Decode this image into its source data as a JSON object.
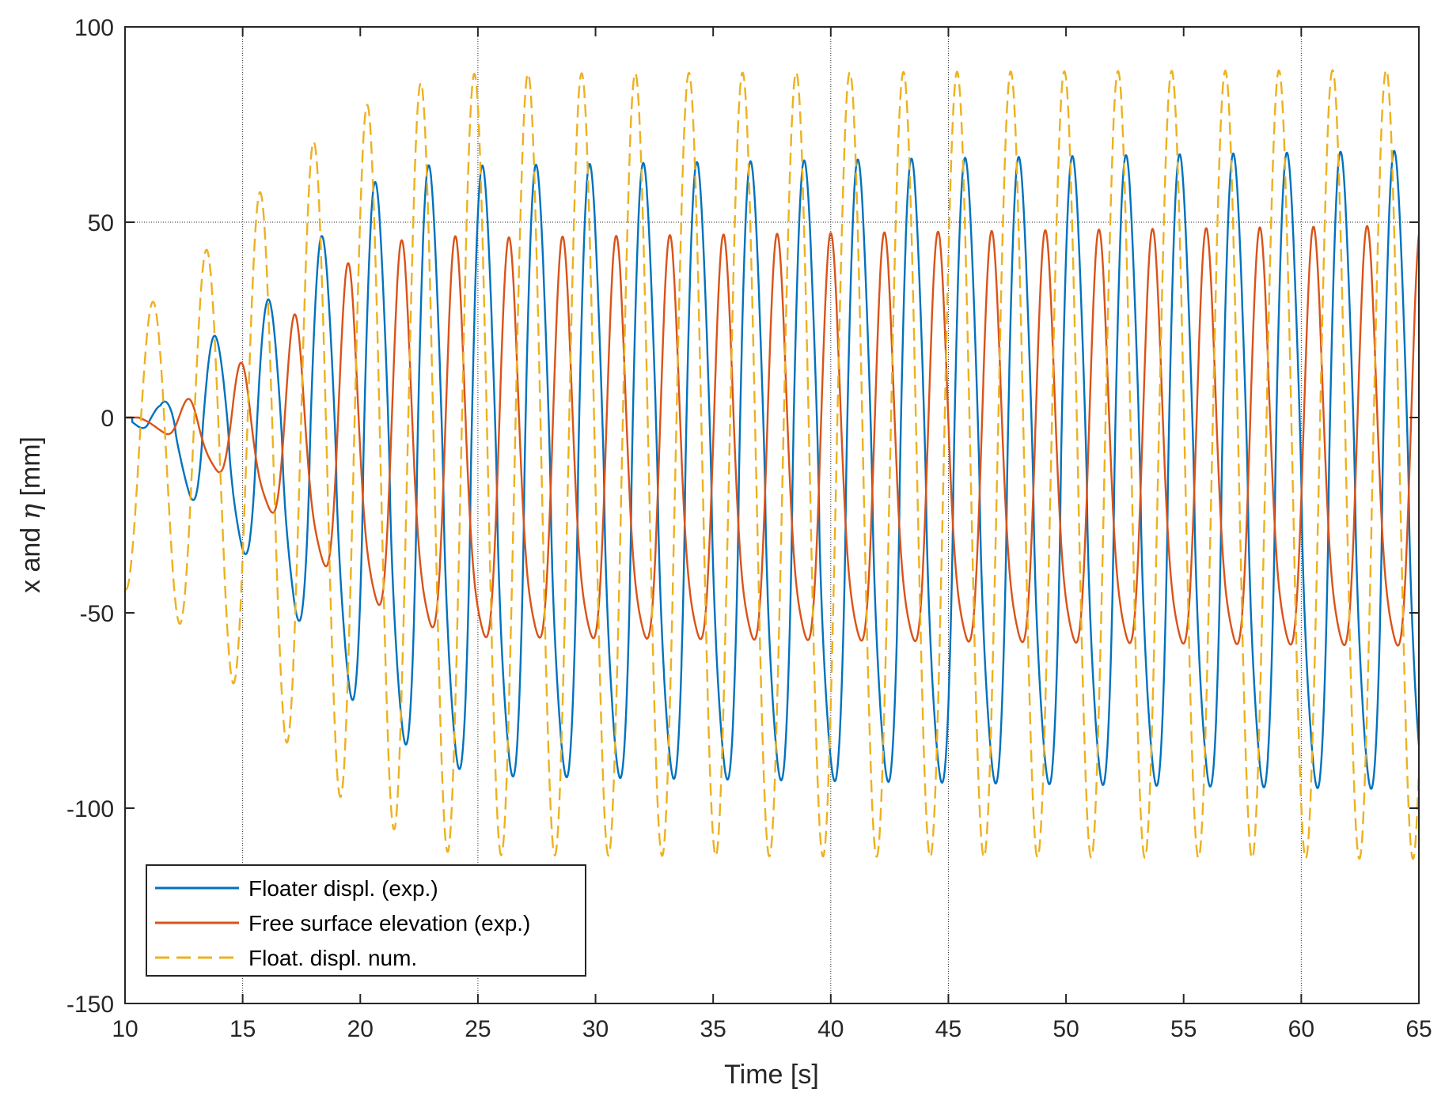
{
  "chart_data": {
    "type": "line",
    "title": "",
    "xlabel": "Time [s]",
    "ylabel_text": "x and ",
    "ylabel_symbol": "η",
    "ylabel_unit": " [mm]",
    "xlim": [
      10,
      65
    ],
    "ylim": [
      -150,
      100
    ],
    "xticks": [
      10,
      15,
      20,
      25,
      30,
      35,
      40,
      45,
      50,
      55,
      60,
      65
    ],
    "xtick_labels": [
      "10",
      "15",
      "20",
      "25",
      "30",
      "35",
      "40",
      "45",
      "50",
      "55",
      "60",
      "65"
    ],
    "yticks": [
      -150,
      -100,
      -50,
      0,
      50,
      100
    ],
    "ytick_labels": [
      "-150",
      "-100",
      "-50",
      "0",
      "50",
      "100"
    ],
    "grid_x": [
      15,
      25,
      40,
      45,
      60
    ],
    "grid_y": [
      50
    ],
    "legend_position": "bottom-left",
    "series": [
      {
        "name": "Floater displ. (exp.)",
        "color": "#0072BD",
        "style": "solid",
        "model": {
          "t_start": 10.0,
          "ramp_end": 25.0,
          "period": 2.28,
          "onset": 10.3,
          "phase_t0": 11.0,
          "mean_start": 0,
          "mean_end": -18,
          "amp_end": 88,
          "envelope": [
            [
              10.0,
              0
            ],
            [
              10.6,
              2
            ],
            [
              11.5,
              5
            ],
            [
              13.0,
              22
            ],
            [
              14.5,
              30
            ],
            [
              16.0,
              38
            ],
            [
              18.0,
              55
            ],
            [
              20.0,
              73
            ],
            [
              22.5,
              82
            ],
            [
              25.0,
              85
            ],
            [
              65.0,
              89
            ]
          ],
          "shape": "sharp"
        },
        "sample_points": [
          {
            "t": 11.2,
            "v": 2
          },
          {
            "t": 11.8,
            "v": -6
          },
          {
            "t": 13.3,
            "v": 18
          },
          {
            "t": 14.3,
            "v": -29
          },
          {
            "t": 15.4,
            "v": 33
          },
          {
            "t": 16.5,
            "v": -41
          },
          {
            "t": 17.7,
            "v": 50
          },
          {
            "t": 18.7,
            "v": -62
          },
          {
            "t": 20.0,
            "v": 63
          },
          {
            "t": 20.9,
            "v": -85
          },
          {
            "t": 22.2,
            "v": 70
          },
          {
            "t": 23.2,
            "v": -95
          },
          {
            "t": 24.5,
            "v": 67
          },
          {
            "t": 25.3,
            "v": -97
          },
          {
            "t": 40.0,
            "v": 73
          },
          {
            "t": 40.9,
            "v": -109
          },
          {
            "t": 62.4,
            "v": 71
          },
          {
            "t": 63.1,
            "v": -109
          }
        ]
      },
      {
        "name": "Free surface elevation (exp.)",
        "color": "#D95319",
        "style": "solid",
        "model": {
          "t_start": 10.0,
          "ramp_end": 25.0,
          "period": 2.28,
          "onset": 10.6,
          "phase_t0": 12.1,
          "mean_start": 0,
          "mean_end": -14,
          "amp_end": 59,
          "envelope": [
            [
              10.0,
              0
            ],
            [
              11.0,
              1
            ],
            [
              12.5,
              6
            ],
            [
              14.0,
              14
            ],
            [
              15.5,
              20
            ],
            [
              17.0,
              30
            ],
            [
              19.0,
              44
            ],
            [
              21.0,
              52
            ],
            [
              23.0,
              56
            ],
            [
              25.0,
              57
            ],
            [
              65.0,
              60
            ]
          ],
          "shape": "wave"
        },
        "sample_points": [
          {
            "t": 12.9,
            "v": 5
          },
          {
            "t": 14.0,
            "v": -13
          },
          {
            "t": 15.0,
            "v": 17
          },
          {
            "t": 16.1,
            "v": -26
          },
          {
            "t": 17.2,
            "v": 27
          },
          {
            "t": 18.4,
            "v": -40
          },
          {
            "t": 19.3,
            "v": 36
          },
          {
            "t": 20.7,
            "v": -55
          },
          {
            "t": 21.8,
            "v": 42
          },
          {
            "t": 22.9,
            "v": -65
          },
          {
            "t": 24.0,
            "v": 44
          },
          {
            "t": 25.0,
            "v": -68
          },
          {
            "t": 64.1,
            "v": 48
          },
          {
            "t": 64.9,
            "v": -74
          }
        ]
      },
      {
        "name": "Float. displ. num.",
        "color": "#EDB120",
        "style": "dashed",
        "model": {
          "t_start": 10.0,
          "ramp_end": 24.5,
          "period": 2.28,
          "onset": 10.0,
          "phase_t0": 10.6,
          "mean_start": -8,
          "mean_end": -12,
          "amp_end": 101,
          "envelope": [
            [
              10.0,
              36
            ],
            [
              11.0,
              37
            ],
            [
              12.3,
              44
            ],
            [
              13.3,
              51
            ],
            [
              14.5,
              58
            ],
            [
              15.5,
              66
            ],
            [
              17.0,
              74
            ],
            [
              18.5,
              84
            ],
            [
              20.0,
              90
            ],
            [
              22.0,
              96
            ],
            [
              24.0,
              100
            ],
            [
              65.0,
              101
            ]
          ],
          "shape": "sine"
        },
        "sample_points": [
          {
            "t": 10.0,
            "v": -42
          },
          {
            "t": 11.0,
            "v": 29
          },
          {
            "t": 12.2,
            "v": -58
          },
          {
            "t": 13.3,
            "v": 43
          },
          {
            "t": 14.5,
            "v": -72
          },
          {
            "t": 15.5,
            "v": 56
          },
          {
            "t": 16.7,
            "v": -85
          },
          {
            "t": 17.8,
            "v": 69
          },
          {
            "t": 19.0,
            "v": -99
          },
          {
            "t": 20.0,
            "v": 79
          },
          {
            "t": 21.2,
            "v": -108
          },
          {
            "t": 22.2,
            "v": 86
          },
          {
            "t": 24.5,
            "v": 90
          },
          {
            "t": 25.6,
            "v": -113
          },
          {
            "t": 65.0,
            "v": 90
          }
        ]
      }
    ]
  }
}
